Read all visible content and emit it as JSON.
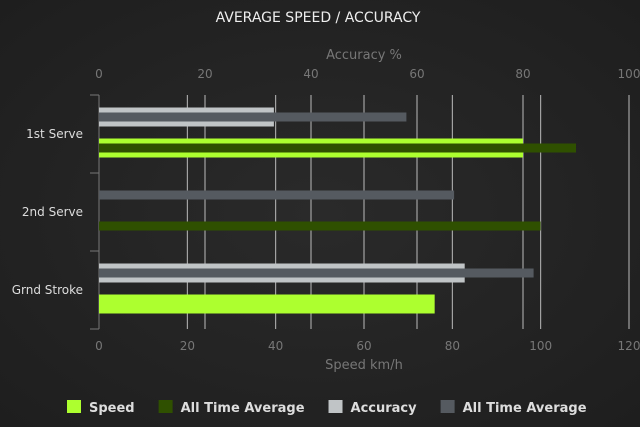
{
  "chart_data": {
    "type": "bar",
    "orientation": "horizontal",
    "title": "AVERAGE SPEED / ACCURACY",
    "categories": [
      "1st Serve",
      "2nd Serve",
      "Grnd Stroke"
    ],
    "x_top": {
      "label": "Accuracy %",
      "range": [
        0,
        100
      ],
      "ticks": [
        0,
        20,
        40,
        60,
        80,
        100
      ]
    },
    "x_bottom": {
      "label": "Speed km/h",
      "range": [
        0,
        120
      ],
      "ticks": [
        0,
        20,
        40,
        60,
        80,
        100,
        120
      ]
    },
    "grid": true,
    "legend_position": "bottom",
    "series": [
      {
        "name": "Speed",
        "axis": "bottom",
        "color": "#adff2f",
        "values": [
          96,
          null,
          76
        ]
      },
      {
        "name": "All Time Average",
        "axis": "bottom",
        "color": "#2f5000",
        "values": [
          108,
          100,
          null
        ]
      },
      {
        "name": "Accuracy",
        "axis": "top",
        "color": "#c0c4c6",
        "values": [
          33,
          null,
          69
        ]
      },
      {
        "name": "All Time Average",
        "axis": "top",
        "color": "#555a60",
        "values": [
          58,
          67,
          82
        ]
      }
    ]
  }
}
